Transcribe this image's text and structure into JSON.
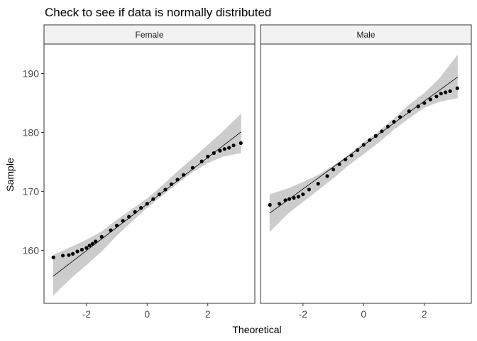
{
  "chart_data": {
    "type": "scatter",
    "subtype": "qq-plot with reference line and confidence band",
    "title": "Check to see if data is normally distributed",
    "xlabel": "Theoretical",
    "ylabel": "Sample",
    "xlim": [
      -3.4,
      3.55
    ],
    "ylim": [
      151,
      195
    ],
    "xticks": [
      -2,
      0,
      2
    ],
    "yticks": [
      160,
      170,
      180,
      190
    ],
    "xtick_labels": [
      "-2",
      "0",
      "2"
    ],
    "ytick_labels": [
      "160",
      "170",
      "180",
      "190"
    ],
    "grid": false,
    "legend": "none",
    "colors": {
      "points": "#000000",
      "line": "#000000",
      "band": "#cccccc",
      "strip": "#f2f2f2",
      "panel_border": "#333333"
    },
    "panels": [
      {
        "name": "Female",
        "points": [
          [
            -3.09,
            158.8
          ],
          [
            -2.78,
            159.1
          ],
          [
            -2.58,
            159.2
          ],
          [
            -2.45,
            159.4
          ],
          [
            -2.3,
            159.8
          ],
          [
            -2.15,
            160.1
          ],
          [
            -2.0,
            160.4
          ],
          [
            -1.9,
            160.8
          ],
          [
            -1.8,
            161.1
          ],
          [
            -1.7,
            161.5
          ],
          [
            -1.5,
            162.3
          ],
          [
            -1.2,
            163.4
          ],
          [
            -1.0,
            164.2
          ],
          [
            -0.8,
            165.0
          ],
          [
            -0.6,
            165.7
          ],
          [
            -0.4,
            166.5
          ],
          [
            -0.2,
            167.2
          ],
          [
            0.0,
            167.9
          ],
          [
            0.2,
            168.7
          ],
          [
            0.4,
            169.5
          ],
          [
            0.6,
            170.3
          ],
          [
            0.8,
            171.2
          ],
          [
            1.0,
            172.0
          ],
          [
            1.2,
            172.8
          ],
          [
            1.5,
            174.0
          ],
          [
            1.8,
            175.1
          ],
          [
            2.0,
            175.9
          ],
          [
            2.2,
            176.5
          ],
          [
            2.4,
            176.9
          ],
          [
            2.55,
            177.2
          ],
          [
            2.7,
            177.4
          ],
          [
            2.85,
            177.8
          ],
          [
            3.09,
            178.2
          ]
        ],
        "line": {
          "x": [
            -3.1,
            3.1
          ],
          "y": [
            155.6,
            180.1
          ]
        },
        "band": {
          "x": [
            -3.1,
            -2.5,
            -2.0,
            -1.5,
            -1.0,
            -0.5,
            0.0,
            0.5,
            1.0,
            1.5,
            2.0,
            2.5,
            3.1
          ],
          "lower": [
            152.3,
            155.3,
            157.5,
            159.8,
            162.5,
            164.9,
            167.2,
            169.3,
            171.3,
            173.3,
            174.8,
            175.9,
            176.5
          ],
          "upper": [
            159.2,
            160.6,
            161.8,
            163.2,
            165.2,
            167.0,
            168.8,
            171.0,
            173.4,
            175.6,
            177.9,
            180.2,
            183.2
          ]
        }
      },
      {
        "name": "Male",
        "points": [
          [
            -3.09,
            167.7
          ],
          [
            -2.78,
            167.9
          ],
          [
            -2.58,
            168.5
          ],
          [
            -2.45,
            168.7
          ],
          [
            -2.3,
            168.9
          ],
          [
            -2.15,
            169.1
          ],
          [
            -2.0,
            169.5
          ],
          [
            -1.8,
            170.3
          ],
          [
            -1.5,
            171.3
          ],
          [
            -1.2,
            172.6
          ],
          [
            -1.0,
            173.7
          ],
          [
            -0.8,
            174.6
          ],
          [
            -0.6,
            175.4
          ],
          [
            -0.4,
            176.1
          ],
          [
            -0.2,
            177.0
          ],
          [
            0.0,
            177.9
          ],
          [
            0.2,
            178.7
          ],
          [
            0.4,
            179.4
          ],
          [
            0.6,
            180.2
          ],
          [
            0.8,
            181.0
          ],
          [
            1.0,
            181.8
          ],
          [
            1.2,
            182.6
          ],
          [
            1.5,
            183.6
          ],
          [
            1.8,
            184.4
          ],
          [
            2.0,
            185.0
          ],
          [
            2.2,
            185.6
          ],
          [
            2.4,
            186.1
          ],
          [
            2.55,
            186.6
          ],
          [
            2.7,
            186.8
          ],
          [
            2.85,
            187.0
          ],
          [
            3.09,
            187.5
          ]
        ],
        "line": {
          "x": [
            -3.1,
            3.1
          ],
          "y": [
            166.3,
            189.4
          ]
        },
        "band": {
          "x": [
            -3.1,
            -2.5,
            -2.0,
            -1.5,
            -1.0,
            -0.5,
            0.0,
            0.5,
            1.0,
            1.5,
            2.0,
            2.5,
            3.1
          ],
          "lower": [
            163.1,
            166.2,
            168.2,
            170.2,
            172.2,
            174.4,
            176.3,
            178.3,
            180.5,
            182.4,
            184.2,
            185.2,
            185.8
          ],
          "upper": [
            169.5,
            170.5,
            171.6,
            172.8,
            174.4,
            176.2,
            178.3,
            180.2,
            182.4,
            184.7,
            186.7,
            189.2,
            193.2
          ]
        }
      }
    ]
  }
}
